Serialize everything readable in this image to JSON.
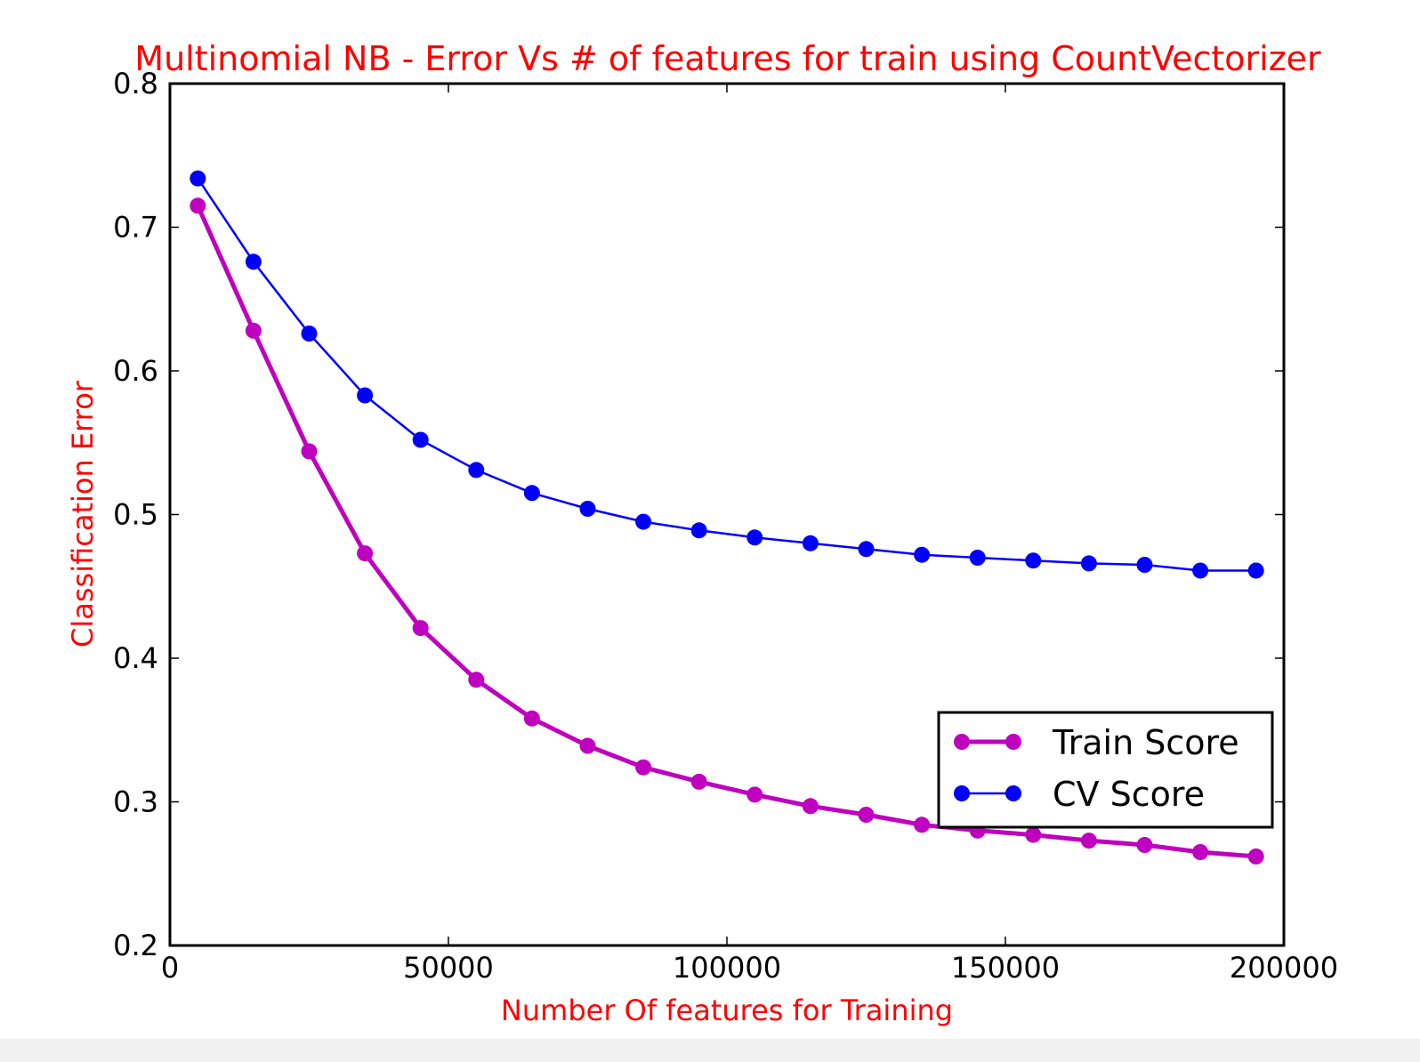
{
  "chart_data": {
    "type": "line",
    "title": "Multinomial NB - Error Vs # of features for train using CountVectorizer",
    "xlabel": "Number Of features for Training",
    "ylabel": "Classification Error",
    "xlim": [
      0,
      200000
    ],
    "ylim": [
      0.2,
      0.8
    ],
    "xticks": [
      0,
      50000,
      100000,
      150000,
      200000
    ],
    "xtick_labels": [
      "0",
      "50000",
      "100000",
      "150000",
      "200000"
    ],
    "yticks": [
      0.2,
      0.3,
      0.4,
      0.5,
      0.6,
      0.7,
      0.8
    ],
    "ytick_labels": [
      "0.2",
      "0.3",
      "0.4",
      "0.5",
      "0.6",
      "0.7",
      "0.8"
    ],
    "grid": false,
    "legend_position": "lower-right",
    "label_color": "#ff0000",
    "x": [
      5000,
      15000,
      25000,
      35000,
      45000,
      55000,
      65000,
      75000,
      85000,
      95000,
      105000,
      115000,
      125000,
      135000,
      145000,
      155000,
      165000,
      175000,
      185000,
      195000
    ],
    "series": [
      {
        "name": "Train Score",
        "color": "#bf00bf",
        "line_width": "thick",
        "values": [
          0.715,
          0.628,
          0.544,
          0.473,
          0.421,
          0.385,
          0.358,
          0.339,
          0.324,
          0.314,
          0.305,
          0.297,
          0.291,
          0.284,
          0.28,
          0.277,
          0.273,
          0.27,
          0.265,
          0.262
        ]
      },
      {
        "name": "CV Score",
        "color": "#0000ff",
        "line_width": "thin",
        "values": [
          0.734,
          0.676,
          0.626,
          0.583,
          0.552,
          0.531,
          0.515,
          0.504,
          0.495,
          0.489,
          0.484,
          0.48,
          0.476,
          0.472,
          0.47,
          0.468,
          0.466,
          0.465,
          0.461,
          0.461
        ]
      }
    ]
  }
}
